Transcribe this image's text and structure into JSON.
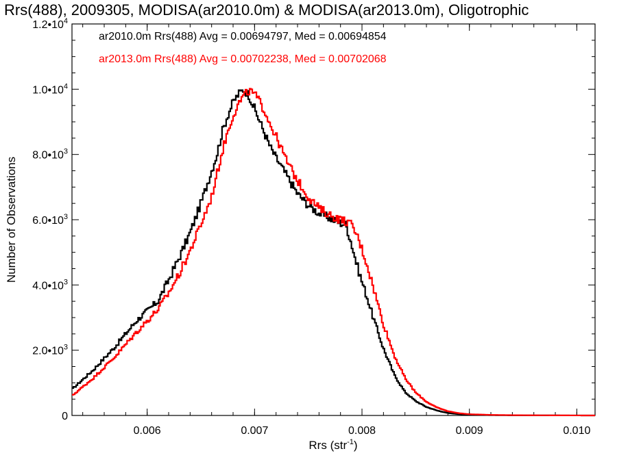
{
  "chart_data": {
    "type": "line",
    "step": true,
    "title": "Rrs(488), 2009305, MODISA(ar2010.0m) & MODISA(ar2013.0m), Oligotrophic",
    "xlabel": {
      "base": "Rrs (str",
      "exponent": "-1",
      "suffix": ")"
    },
    "ylabel": "Number of Observations",
    "xlim": [
      0.0053,
      0.01017
    ],
    "ylim": [
      0,
      12000
    ],
    "x_ticks": [
      {
        "value": 0.006,
        "label": "0.006"
      },
      {
        "value": 0.007,
        "label": "0.007"
      },
      {
        "value": 0.008,
        "label": "0.008"
      },
      {
        "value": 0.009,
        "label": "0.009"
      },
      {
        "value": 0.01,
        "label": "0.010"
      }
    ],
    "y_ticks": [
      {
        "value": 0,
        "mantissa": "0",
        "exponent": ""
      },
      {
        "value": 2000,
        "mantissa": "2.0•10",
        "exponent": "3"
      },
      {
        "value": 4000,
        "mantissa": "4.0•10",
        "exponent": "3"
      },
      {
        "value": 6000,
        "mantissa": "6.0•10",
        "exponent": "3"
      },
      {
        "value": 8000,
        "mantissa": "8.0•10",
        "exponent": "3"
      },
      {
        "value": 10000,
        "mantissa": "1.0•10",
        "exponent": "4"
      },
      {
        "value": 12000,
        "mantissa": "1.2•10",
        "exponent": "4"
      }
    ],
    "legend": [
      "ar2010.0m Rrs(488) Avg = 0.00694797, Med = 0.00694854",
      "ar2013.0m Rrs(488) Avg = 0.00702238, Med = 0.00702068"
    ],
    "series": [
      {
        "color": "#000000",
        "x": [
          0.0053,
          0.0055,
          0.0057,
          0.0059,
          0.0061,
          0.0062,
          0.0063,
          0.0064,
          0.0065,
          0.0066,
          0.00665,
          0.0067,
          0.00675,
          0.0068,
          0.00685,
          0.0069,
          0.00695,
          0.007,
          0.00705,
          0.0071,
          0.00715,
          0.0072,
          0.0073,
          0.0074,
          0.0075,
          0.0076,
          0.0077,
          0.0078,
          0.00785,
          0.0079,
          0.00795,
          0.008,
          0.00805,
          0.0081,
          0.00815,
          0.0082,
          0.0083,
          0.0084,
          0.0085,
          0.0086,
          0.0087,
          0.0088,
          0.0089,
          0.009,
          0.0092,
          0.0094,
          0.0096,
          0.0098,
          0.01,
          0.01017
        ],
        "values": [
          800,
          1400,
          2100,
          2900,
          3500,
          4150,
          4850,
          5600,
          6500,
          7500,
          8000,
          8700,
          9200,
          9600,
          9850,
          10000,
          9800,
          9400,
          9000,
          8600,
          8200,
          7900,
          7350,
          6800,
          6450,
          6200,
          6050,
          5900,
          5850,
          5300,
          4650,
          4100,
          3600,
          3050,
          2550,
          2050,
          1250,
          720,
          440,
          260,
          150,
          75,
          40,
          22,
          10,
          5,
          3,
          2,
          1,
          0
        ]
      },
      {
        "color": "#ff0000",
        "x": [
          0.0053,
          0.0055,
          0.0057,
          0.0059,
          0.0061,
          0.0062,
          0.0063,
          0.0064,
          0.0065,
          0.0066,
          0.00665,
          0.0067,
          0.00675,
          0.0068,
          0.00685,
          0.0069,
          0.00695,
          0.007,
          0.00705,
          0.0071,
          0.00715,
          0.0072,
          0.0073,
          0.0074,
          0.0075,
          0.0076,
          0.0077,
          0.0078,
          0.00785,
          0.0079,
          0.00795,
          0.008,
          0.00805,
          0.0081,
          0.00815,
          0.0082,
          0.0083,
          0.0084,
          0.0085,
          0.0086,
          0.0087,
          0.0088,
          0.0089,
          0.009,
          0.0092,
          0.0094,
          0.0096,
          0.0098,
          0.01,
          0.01017
        ],
        "values": [
          600,
          1150,
          1800,
          2550,
          3250,
          3750,
          4350,
          5050,
          5850,
          6700,
          7400,
          8100,
          8700,
          9200,
          9550,
          9800,
          9950,
          9850,
          9600,
          9300,
          8900,
          8550,
          7800,
          7200,
          6700,
          6350,
          6150,
          6000,
          5950,
          5850,
          5550,
          5100,
          4600,
          4000,
          3400,
          2800,
          1850,
          1150,
          700,
          420,
          240,
          130,
          70,
          38,
          18,
          9,
          5,
          3,
          1,
          0
        ]
      }
    ]
  }
}
